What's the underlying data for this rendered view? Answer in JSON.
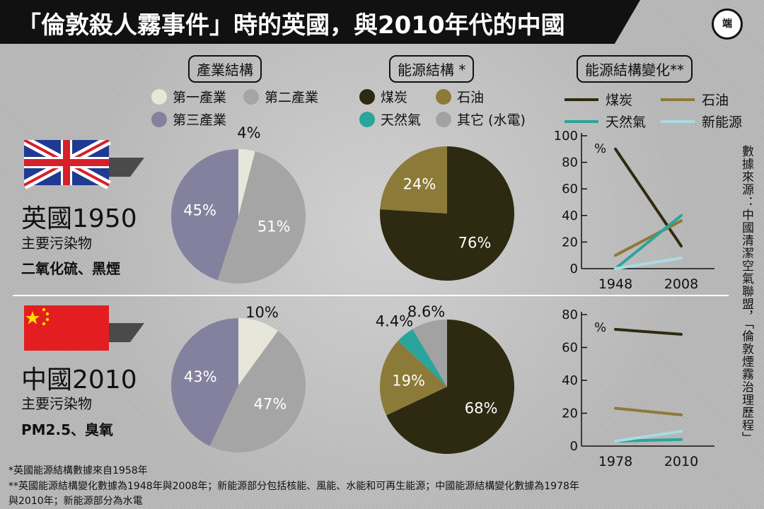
{
  "header": {
    "title": "「倫敦殺人霧事件」時的英國，與2010年代的中國",
    "logo_text": "端"
  },
  "sections": {
    "industry": "產業結構",
    "energy": "能源結構 *",
    "energy_change": "能源結構變化**"
  },
  "legends": {
    "industry": [
      "第一產業",
      "第二產業",
      "第三產業"
    ],
    "energy": [
      "煤炭",
      "石油",
      "天然氣",
      "其它 (水電)"
    ],
    "energy_change": [
      "煤炭",
      "石油",
      "天然氣",
      "新能源"
    ]
  },
  "colors": {
    "primary": "#e6e6da",
    "secondary": "#a5a5a5",
    "tertiary": "#84819f",
    "coal": "#2e2a11",
    "oil": "#8c7a38",
    "gas": "#2aa59b",
    "other": "#a2a2a2",
    "newenergy": "#a9dbe3"
  },
  "uk": {
    "country": "英國1950",
    "pollutant_label": "主要污染物",
    "pollutants": "二氧化硫、黑煙"
  },
  "cn": {
    "country": "中國2010",
    "pollutant_label": "主要污染物",
    "pollutants": "PM2.5、臭氧"
  },
  "source": "數據來源：中國清潔空氣聯盟，「倫敦煙霧治理歷程」",
  "footnotes": {
    "f1": "*英國能源結構數據來自1958年",
    "f2": "**英國能源結構變化數據為1948年與2008年；新能源部分包括核能、風能、水能和可再生能源；中國能源結構變化數據為1978年",
    "f3": "與2010年；新能源部分為水電"
  },
  "chart_data": [
    {
      "type": "pie",
      "id": "uk_industry",
      "labels": [
        "第一產業",
        "第二產業",
        "第三產業"
      ],
      "values": [
        4,
        51,
        45
      ],
      "value_labels": [
        "4%",
        "51%",
        "45%"
      ]
    },
    {
      "type": "pie",
      "id": "uk_energy",
      "labels": [
        "煤炭",
        "石油"
      ],
      "values": [
        76,
        24
      ],
      "value_labels": [
        "76%",
        "24%"
      ]
    },
    {
      "type": "line",
      "id": "uk_energy_change",
      "x": [
        "1948",
        "2008"
      ],
      "ylabel": "%",
      "ylim": [
        0,
        100
      ],
      "yticks": [
        "0",
        "20",
        "40",
        "60",
        "80",
        "100"
      ],
      "series": [
        {
          "name": "煤炭",
          "values": [
            90,
            17
          ]
        },
        {
          "name": "石油",
          "values": [
            10,
            36
          ]
        },
        {
          "name": "天然氣",
          "values": [
            0,
            40
          ]
        },
        {
          "name": "新能源",
          "values": [
            0,
            8
          ]
        }
      ]
    },
    {
      "type": "pie",
      "id": "cn_industry",
      "labels": [
        "第一產業",
        "第二產業",
        "第三產業"
      ],
      "values": [
        10,
        47,
        43
      ],
      "value_labels": [
        "10%",
        "47%",
        "43%"
      ]
    },
    {
      "type": "pie",
      "id": "cn_energy",
      "labels": [
        "煤炭",
        "石油",
        "天然氣",
        "其它 (水電)"
      ],
      "values": [
        68,
        19,
        4.4,
        8.6
      ],
      "value_labels": [
        "68%",
        "19%",
        "4.4%",
        "8.6%"
      ]
    },
    {
      "type": "line",
      "id": "cn_energy_change",
      "x": [
        "1978",
        "2010"
      ],
      "ylabel": "%",
      "ylim": [
        0,
        80
      ],
      "yticks": [
        "0",
        "20",
        "40",
        "60",
        "80"
      ],
      "series": [
        {
          "name": "煤炭",
          "values": [
            71,
            68
          ]
        },
        {
          "name": "石油",
          "values": [
            23,
            19
          ]
        },
        {
          "name": "天然氣",
          "values": [
            3,
            4
          ]
        },
        {
          "name": "新能源",
          "values": [
            3,
            9
          ]
        }
      ]
    }
  ]
}
